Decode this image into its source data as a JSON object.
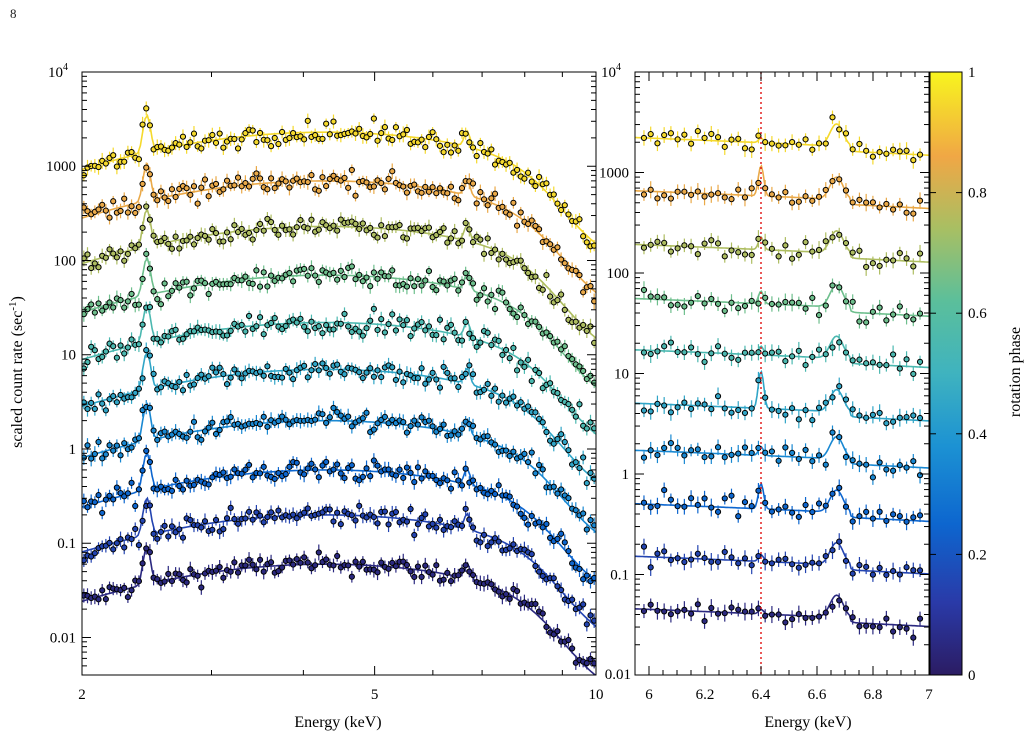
{
  "page_number": "8",
  "colorbar": {
    "label": "rotation phase",
    "ticks": [
      "0",
      "0.2",
      "0.4",
      "0.6",
      "0.8",
      "1"
    ]
  },
  "chart_data": [
    {
      "type": "scatter",
      "xlabel": "Energy (keV)",
      "ylabel": "scaled count rate (sec",
      "ylabel_sup": "-1",
      "ylabel_close": ")",
      "x_scale": "log",
      "y_scale": "log",
      "xlim": [
        2,
        10
      ],
      "ylim": [
        0.004,
        10000
      ],
      "x_ticks": [
        "2",
        "5",
        "10"
      ],
      "y_ticks": [
        "0.01",
        "0.1",
        "1",
        "10",
        "100",
        "1000"
      ],
      "y_top_tick": {
        "base": "10",
        "exp": "4"
      },
      "series_phases": [
        0.05,
        0.15,
        0.25,
        0.35,
        0.45,
        0.55,
        0.65,
        0.75,
        0.85,
        0.95
      ],
      "series_levels": [
        0.06,
        0.2,
        0.6,
        2,
        7,
        22,
        70,
        230,
        700,
        2300
      ],
      "features_keV": [
        2.45,
        6.4,
        6.7
      ]
    },
    {
      "type": "scatter",
      "xlabel": "Energy (keV)",
      "x_scale": "linear",
      "y_scale": "log",
      "xlim": [
        5.95,
        7.0
      ],
      "ylim": [
        0.01,
        10000
      ],
      "x_ticks": [
        "6",
        "6.2",
        "6.4",
        "6.6",
        "6.8",
        "7"
      ],
      "y_ticks": [
        "0.01",
        "0.1",
        "1",
        "10",
        "100",
        "1000"
      ],
      "y_top_tick": {
        "base": "10",
        "exp": "4"
      },
      "reference_line_keV": 6.4,
      "series_phases": [
        0.05,
        0.15,
        0.25,
        0.35,
        0.45,
        0.55,
        0.65,
        0.75,
        0.85,
        0.95
      ],
      "series_levels": [
        0.045,
        0.15,
        0.5,
        1.7,
        5,
        17,
        55,
        190,
        650,
        2200
      ],
      "lines_keV": [
        6.4,
        6.68
      ]
    }
  ]
}
